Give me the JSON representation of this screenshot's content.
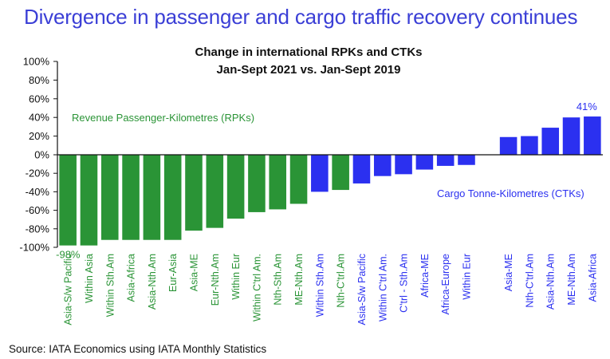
{
  "headline": "Divergence in passenger and cargo traffic recovery continues",
  "source": "Source: IATA Economics using IATA Monthly Statistics",
  "colors": {
    "rpk": "#2a9436",
    "ctk": "#2b30f0",
    "headline": "#3b3fd6"
  },
  "chart_data": {
    "type": "bar",
    "title": [
      "Change in international RPKs and CTKs",
      "Jan-Sept 2021 vs. Jan-Sept 2019"
    ],
    "xlabel": "",
    "ylabel": "",
    "ylim": [
      -100,
      100
    ],
    "yticks": [
      100,
      80,
      60,
      40,
      20,
      0,
      -20,
      -40,
      -60,
      -80,
      -100
    ],
    "ytick_labels": [
      "100%",
      "80%",
      "60%",
      "40%",
      "20%",
      "0%",
      "-20%",
      "-40%",
      "-60%",
      "-80%",
      "-100%"
    ],
    "grid": false,
    "categories": [
      "Asia-S/w Pacific",
      "Within Asia",
      "Within Sth.Am",
      "Asia-Africa",
      "Asia-Nth.Am",
      "Eur-Asia",
      "Asia-ME",
      "Eur-Nth.Am",
      "Within Eur",
      "Within C'trl Am.",
      "Nth-Sth.Am",
      "ME-Nth.Am",
      "Within Sth.Am",
      "Nth-C'trl.Am",
      "Asia-S/w Pacific",
      "Within C'trl Am.",
      "C'trl - Sth.Am",
      "Africa-ME",
      "Africa-Europe",
      "Within Eur",
      "",
      "Asia-ME",
      "Nth-C'trl.Am",
      "Asia-Nth.Am",
      "ME-Nth.Am",
      "Asia-Africa"
    ],
    "series_of_category": [
      "RPK",
      "RPK",
      "RPK",
      "RPK",
      "RPK",
      "RPK",
      "RPK",
      "RPK",
      "RPK",
      "RPK",
      "RPK",
      "RPK",
      "CTK",
      "RPK",
      "CTK",
      "CTK",
      "CTK",
      "CTK",
      "CTK",
      "CTK",
      "",
      "CTK",
      "CTK",
      "CTK",
      "CTK",
      "CTK"
    ],
    "values": [
      -98,
      -98,
      -92,
      -92,
      -92,
      -92,
      -82,
      -79,
      -69,
      -62,
      -59,
      -53,
      -40,
      -38,
      -31,
      -23,
      -21,
      -16,
      -12,
      -11,
      null,
      19,
      20,
      29,
      40,
      41
    ],
    "series": [
      {
        "name": "Revenue Passenger-Kilometres (RPKs)",
        "color": "#2a9436"
      },
      {
        "name": "Cargo Tonne-Kilometres (CTKs)",
        "color": "#2b30f0"
      }
    ],
    "annotations": [
      {
        "text": "-98%",
        "category_index": 0,
        "series": "RPK"
      },
      {
        "text": "41%",
        "category_index": 25,
        "series": "CTK"
      }
    ],
    "legend": "inline labels: RPK top-left, CTK bottom-right"
  }
}
